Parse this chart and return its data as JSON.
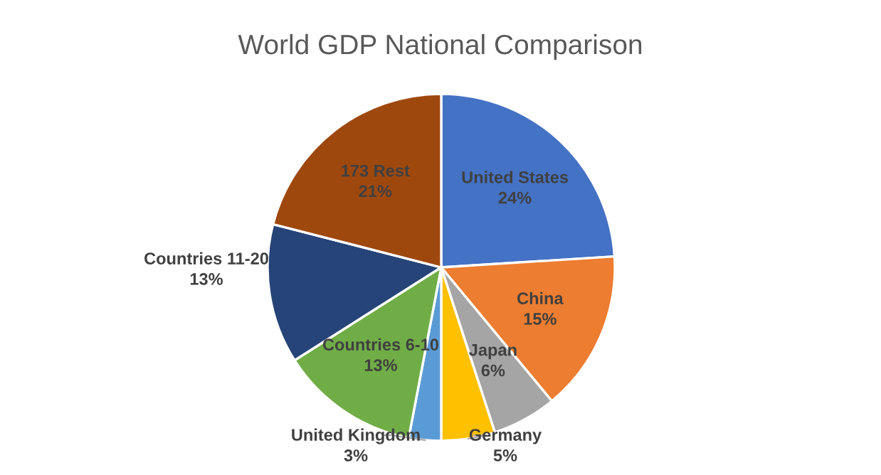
{
  "chart_data": {
    "type": "pie",
    "title": "World GDP National Comparison",
    "categories": [
      "United States",
      "China",
      "Japan",
      "Germany",
      "United Kingdom",
      "Countries 6-10",
      "Countries 11-20",
      "173 Rest"
    ],
    "values": [
      24,
      15,
      6,
      5,
      3,
      13,
      13,
      21
    ],
    "value_labels": [
      "24%",
      "15%",
      "6%",
      "5%",
      "3%",
      "13%",
      "13%",
      "21%"
    ],
    "colors": [
      "#4472c4",
      "#ed7d31",
      "#a5a5a5",
      "#ffc000",
      "#5b9bd5",
      "#70ad47",
      "#264478",
      "#9e480e"
    ],
    "legend": false
  }
}
